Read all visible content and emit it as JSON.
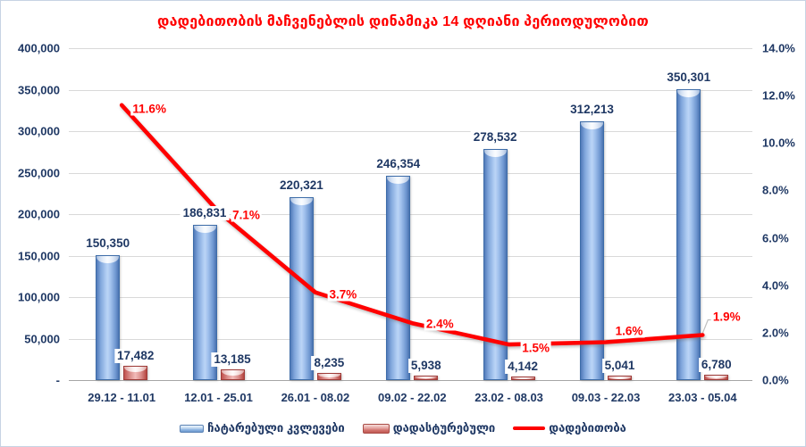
{
  "chart_data": {
    "type": "bar",
    "subtype": "combo-bar-line",
    "title": "დადებითობის მაჩვენებლის დინამიკა 14 დღიანი პერიოდულობით",
    "title_color": "#FF0000",
    "categories": [
      "29.12 - 11.01",
      "12.01 - 25.01",
      "26.01 - 08.02",
      "09.02 - 22.02",
      "23.02 - 08.03",
      "09.03 - 22.03",
      "23.03 - 05.04"
    ],
    "series": [
      {
        "name": "ჩატარებული კვლევები",
        "chart": "bar",
        "color": "#4F81BD",
        "axis": "left",
        "values": [
          150350,
          186831,
          220321,
          246354,
          278532,
          312213,
          350301
        ],
        "data_labels": [
          "150,350",
          "186,831",
          "220,321",
          "246,354",
          "278,532",
          "312,213",
          "350,301"
        ]
      },
      {
        "name": "დადასტურებული",
        "chart": "bar",
        "color": "#C0504D",
        "axis": "left",
        "values": [
          17482,
          13185,
          8235,
          5938,
          4142,
          5041,
          6780
        ],
        "data_labels": [
          "17,482",
          "13,185",
          "8,235",
          "5,938",
          "4,142",
          "5,041",
          "6,780"
        ]
      },
      {
        "name": "დადებითობა",
        "chart": "line",
        "color": "#FF0000",
        "axis": "right",
        "values": [
          11.6,
          7.1,
          3.7,
          2.4,
          1.5,
          1.6,
          1.9
        ],
        "data_labels": [
          "11.6%",
          "7.1%",
          "3.7%",
          "2.4%",
          "1.5%",
          "1.6%",
          "1.9%"
        ]
      }
    ],
    "left_axis": {
      "min": 0,
      "max": 400000,
      "step": 50000,
      "tick_labels": [
        "-",
        "50,000",
        "100,000",
        "150,000",
        "200,000",
        "250,000",
        "300,000",
        "350,000",
        "400,000"
      ]
    },
    "right_axis": {
      "min": 0,
      "max": 14,
      "step": 2,
      "tick_labels": [
        "0.0%",
        "2.0%",
        "4.0%",
        "6.0%",
        "8.0%",
        "10.0%",
        "12.0%",
        "14.0%"
      ]
    },
    "grid": "horizontal",
    "legend_position": "bottom",
    "label_text_color": "#1F3864"
  }
}
